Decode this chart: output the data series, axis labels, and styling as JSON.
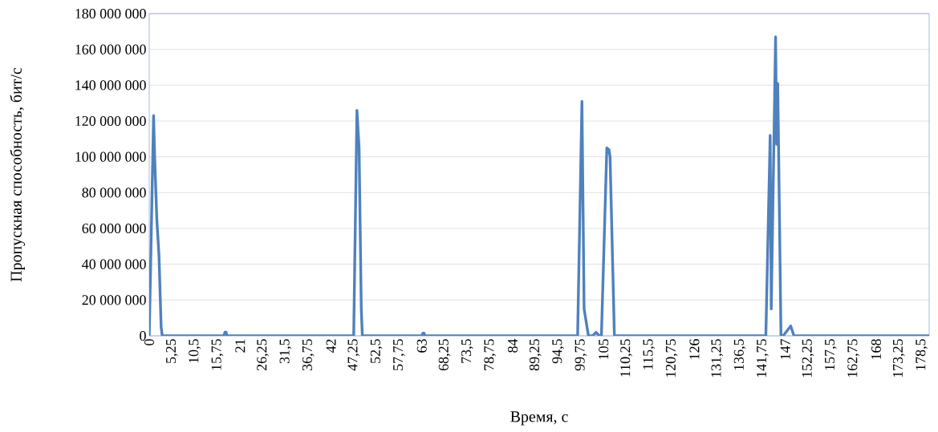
{
  "chart_data": {
    "type": "line",
    "xlabel": "Время, с",
    "ylabel": "Пропускная способность, бит/с",
    "x": [
      0,
      1,
      1.25,
      1.75,
      2.25,
      2.75,
      3,
      17.25,
      17.5,
      17.75,
      18,
      47.25,
      48,
      48.5,
      49,
      49.25,
      63,
      63.25,
      63.5,
      63.75,
      99,
      100,
      100.5,
      101.5,
      102.5,
      103.25,
      104,
      104.5,
      105.75,
      106.25,
      106.5,
      107.5,
      142.5,
      143.5,
      143.75,
      144.75,
      145,
      145.25,
      146,
      146.5,
      148.25,
      149,
      180.25
    ],
    "values": [
      0,
      123000000,
      100000000,
      65000000,
      45000000,
      5000000,
      0,
      0,
      2000000,
      2000000,
      0,
      0,
      126000000,
      105000000,
      15000000,
      0,
      0,
      1500000,
      1500000,
      0,
      0,
      131000000,
      15000000,
      0,
      0,
      2000000,
      0,
      0,
      105000000,
      104000000,
      100000000,
      0,
      0,
      112000000,
      15000000,
      167000000,
      107000000,
      141000000,
      0,
      0,
      5500000,
      0,
      0
    ],
    "color": "#4f81bd",
    "marker": "none",
    "grid": "y",
    "xlim": [
      0,
      180.25
    ],
    "ylim": [
      0,
      180000000
    ],
    "xticks": [
      0,
      {
        "value": 5.25,
        "label": "5,25"
      },
      {
        "value": 10.5,
        "label": "10,5"
      },
      {
        "value": 15.75,
        "label": "15,75"
      },
      21,
      {
        "value": 26.25,
        "label": "26,25"
      },
      {
        "value": 31.5,
        "label": "31,5"
      },
      {
        "value": 36.75,
        "label": "36,75"
      },
      42,
      {
        "value": 47.25,
        "label": "47,25"
      },
      {
        "value": 52.5,
        "label": "52,5"
      },
      {
        "value": 57.75,
        "label": "57,75"
      },
      63,
      {
        "value": 68.25,
        "label": "68,25"
      },
      {
        "value": 73.5,
        "label": "73,5"
      },
      {
        "value": 78.75,
        "label": "78,75"
      },
      84,
      {
        "value": 89.25,
        "label": "89,25"
      },
      {
        "value": 94.5,
        "label": "94,5"
      },
      {
        "value": 99.75,
        "label": "99,75"
      },
      105,
      {
        "value": 110.25,
        "label": "110,25"
      },
      {
        "value": 115.5,
        "label": "115,5"
      },
      {
        "value": 120.75,
        "label": "120,75"
      },
      126,
      {
        "value": 131.25,
        "label": "131,25"
      },
      {
        "value": 136.5,
        "label": "136,5"
      },
      {
        "value": 141.75,
        "label": "141,75"
      },
      147,
      {
        "value": 152.25,
        "label": "152,25"
      },
      {
        "value": 157.5,
        "label": "157,5"
      },
      {
        "value": 162.75,
        "label": "162,75"
      },
      168,
      {
        "value": 173.25,
        "label": "173,25"
      },
      {
        "value": 178.5,
        "label": "178,5"
      }
    ],
    "yticks": [
      0,
      {
        "value": 20000000,
        "label": "20 000 000"
      },
      {
        "value": 40000000,
        "label": "40 000 000"
      },
      {
        "value": 60000000,
        "label": "60 000 000"
      },
      {
        "value": 80000000,
        "label": "80 000 000"
      },
      {
        "value": 100000000,
        "label": "100 000 000"
      },
      {
        "value": 120000000,
        "label": "120 000 000"
      },
      {
        "value": 140000000,
        "label": "140 000 000"
      },
      {
        "value": 160000000,
        "label": "160 000 000"
      },
      {
        "value": 180000000,
        "label": "180 000 000"
      }
    ]
  }
}
